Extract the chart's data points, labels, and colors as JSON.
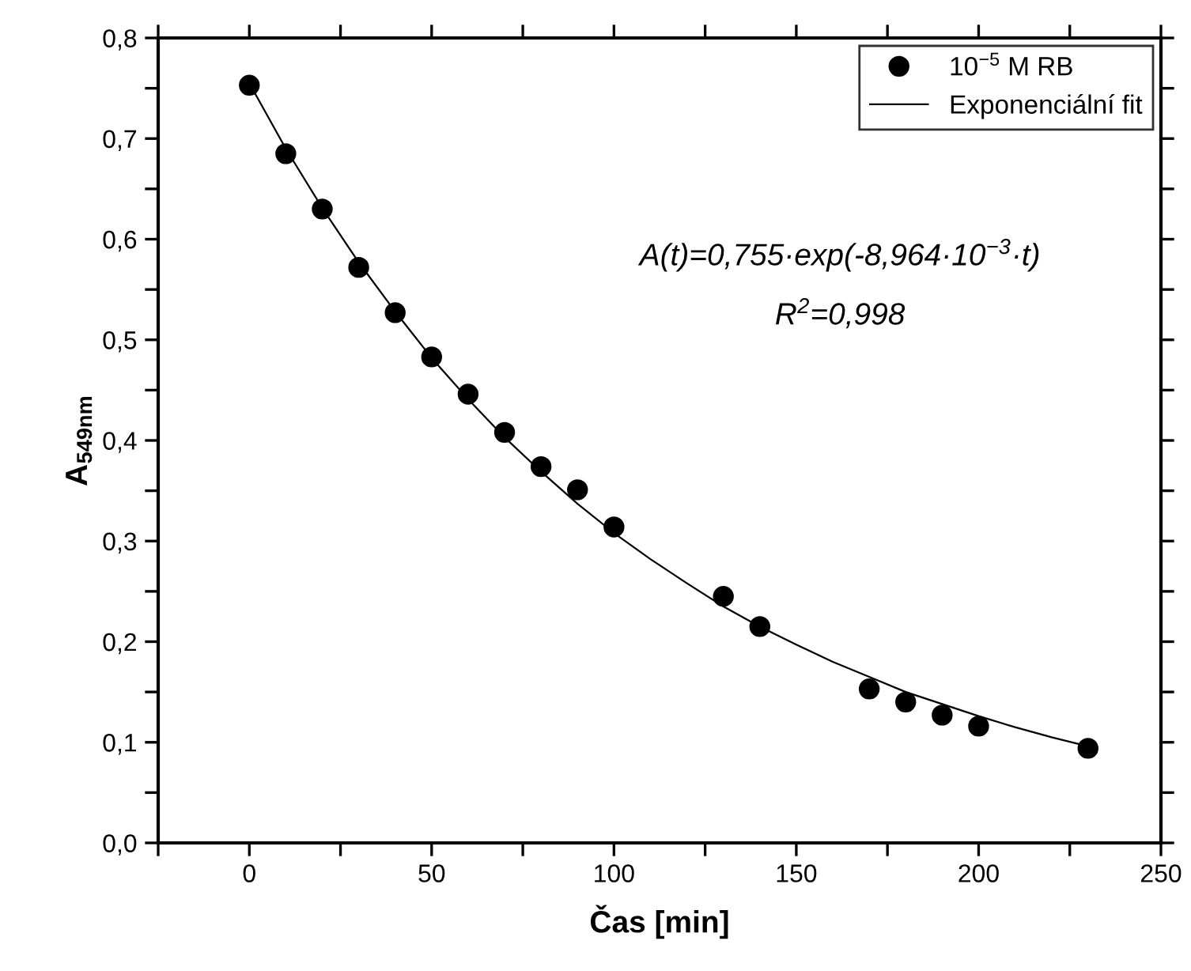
{
  "chart_data": {
    "type": "scatter",
    "xlabel": "Čas [min]",
    "ylabel": "A$_{549nm}$",
    "xlim": [
      -25,
      250
    ],
    "ylim": [
      0,
      0.8
    ],
    "xticks": [
      {
        "value": -25,
        "label": null
      },
      0,
      {
        "value": 25,
        "label": null
      },
      50,
      {
        "value": 75,
        "label": null
      },
      100,
      {
        "value": 125,
        "label": null
      },
      150,
      {
        "value": 175,
        "label": null
      },
      200,
      {
        "value": 225,
        "label": null
      },
      250
    ],
    "yticks": [
      {
        "value": 0,
        "label": "0,0"
      },
      {
        "value": 0.05,
        "label": null
      },
      {
        "value": 0.1,
        "label": "0,1"
      },
      {
        "value": 0.15,
        "label": null
      },
      {
        "value": 0.2,
        "label": "0,2"
      },
      {
        "value": 0.25,
        "label": null
      },
      {
        "value": 0.3,
        "label": "0,3"
      },
      {
        "value": 0.35,
        "label": null
      },
      {
        "value": 0.4,
        "label": "0,4"
      },
      {
        "value": 0.45,
        "label": null
      },
      {
        "value": 0.5,
        "label": "0,5"
      },
      {
        "value": 0.55,
        "label": null
      },
      {
        "value": 0.6,
        "label": "0,6"
      },
      {
        "value": 0.65,
        "label": null
      },
      {
        "value": 0.7,
        "label": "0,7"
      },
      {
        "value": 0.75,
        "label": null
      },
      {
        "value": 0.8,
        "label": "0,8"
      }
    ],
    "grid": false,
    "legend": "top right",
    "marker": "circle",
    "series": [
      {
        "name": "10$^{−5}$ M RB",
        "color": "#000000",
        "x": [
          0,
          10,
          20,
          30,
          40,
          50,
          60,
          70,
          80,
          90,
          100,
          130,
          140,
          170,
          180,
          190,
          200,
          230
        ],
        "values": [
          0.753,
          0.685,
          0.63,
          0.572,
          0.527,
          0.483,
          0.446,
          0.408,
          0.374,
          0.351,
          0.314,
          0.245,
          0.215,
          0.153,
          0.14,
          0.127,
          0.116,
          0.094
        ]
      },
      {
        "name": "Exponenciální fit",
        "type": "line",
        "color": "#000000",
        "marker": "none",
        "line_style": "solid",
        "x": [
          0,
          10,
          20,
          30,
          40,
          50,
          60,
          70,
          80,
          90,
          100,
          110,
          120,
          130,
          140,
          150,
          160,
          170,
          180,
          190,
          200,
          210,
          220,
          230
        ],
        "values": [
          0.755,
          0.69,
          0.631,
          0.577,
          0.528,
          0.482,
          0.441,
          0.403,
          0.369,
          0.337,
          0.308,
          0.282,
          0.258,
          0.235,
          0.215,
          0.197,
          0.18,
          0.165,
          0.15,
          0.138,
          0.126,
          0.115,
          0.105,
          0.096
        ]
      }
    ],
    "annotations": [
      "A(t)=0,755·exp(-8,964·10$^{−3}$·t)",
      "R$^{2}$=0,998"
    ]
  }
}
